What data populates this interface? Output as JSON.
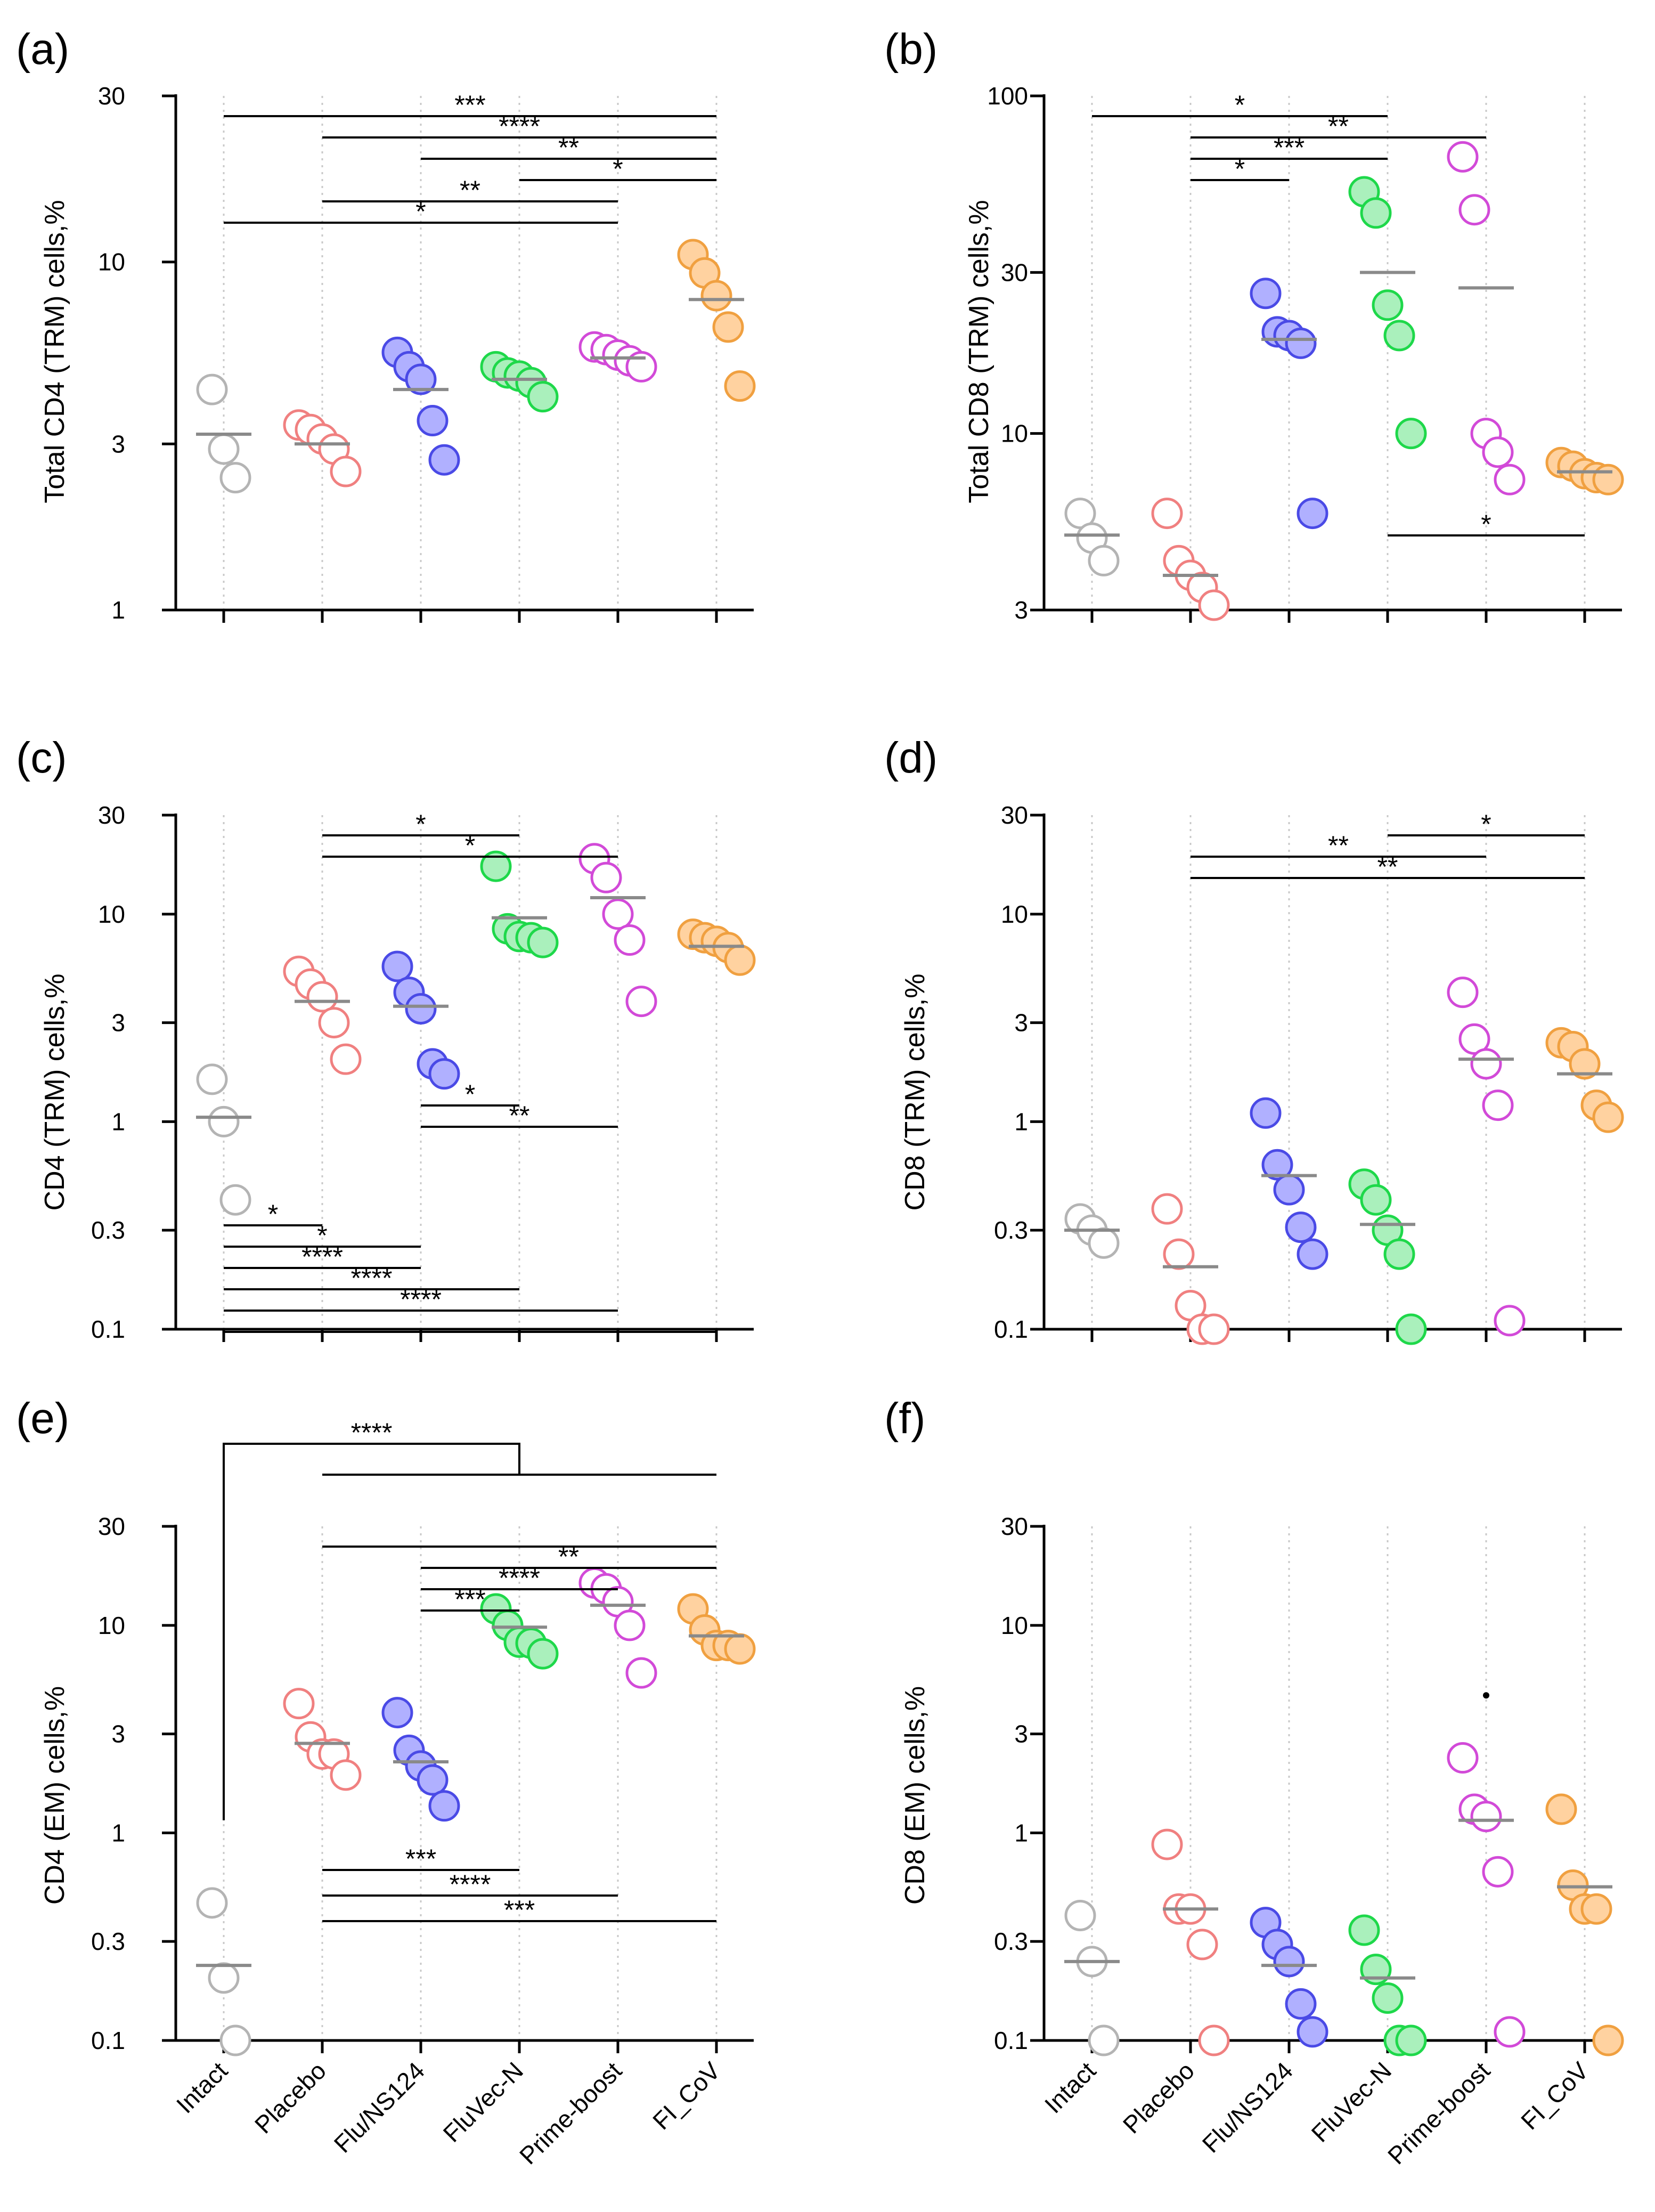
{
  "figure": {
    "groups": [
      "Intact",
      "Placebo",
      "Flu/NS124",
      "FluVec-N",
      "Prime-boost",
      "FI_CoV"
    ],
    "colors": {
      "Intact": "#b4b4b4",
      "Placebo": "#f08080",
      "Flu/NS124": "#4a4ae6",
      "FluVec-N": "#1ed84a",
      "Prime-boost": "#d24ad8",
      "FI_CoV": "#f0a040"
    },
    "fills": {
      "Intact": "#ffffff",
      "Placebo": "#ffffff",
      "Flu/NS124": "#b0b0ff",
      "FluVec-N": "#aaf0bc",
      "Prime-boost": "#ffffff",
      "FI_CoV": "#ffd2a0"
    }
  },
  "chart_data": [
    {
      "panel": "(a)",
      "type": "scatter",
      "scale": "log",
      "ylabel": "Total CD4 (TRM) cells,%",
      "ylim": [
        1,
        30
      ],
      "yticks": [
        1,
        3,
        10,
        30
      ],
      "ytick_labels": [
        "1",
        "3",
        "10",
        "30"
      ],
      "categories": [
        "Intact",
        "Placebo",
        "Flu/NS124",
        "FluVec-N",
        "Prime-boost",
        "FI_CoV"
      ],
      "points": [
        [
          4.3,
          2.9,
          2.4
        ],
        [
          3.4,
          3.3,
          3.1,
          2.9,
          2.5
        ],
        [
          5.5,
          5.0,
          4.6,
          3.5,
          2.7
        ],
        [
          5.0,
          4.8,
          4.7,
          4.5,
          4.1
        ],
        [
          5.7,
          5.6,
          5.4,
          5.2,
          5.0
        ],
        [
          10.5,
          9.3,
          8.0,
          6.5,
          4.4
        ]
      ],
      "medians": [
        3.2,
        3.0,
        4.3,
        4.6,
        5.3,
        7.8
      ],
      "brackets": [
        {
          "from": 0,
          "to": 5,
          "label": "***"
        },
        {
          "from": 1,
          "to": 5,
          "label": "****"
        },
        {
          "from": 2,
          "to": 5,
          "label": "**"
        },
        {
          "from": 3,
          "to": 5,
          "label": "*"
        },
        {
          "from": 1,
          "to": 4,
          "label": "**"
        },
        {
          "from": 0,
          "to": 4,
          "label": "*"
        }
      ]
    },
    {
      "panel": "(b)",
      "type": "scatter",
      "scale": "log",
      "ylabel": "Total CD8 (TRM) cells,%",
      "ylim": [
        3,
        100
      ],
      "yticks": [
        3,
        10,
        30,
        100
      ],
      "ytick_labels": [
        "3",
        "10",
        "30",
        "100"
      ],
      "categories": [
        "Intact",
        "Placebo",
        "Flu/NS124",
        "FluVec-N",
        "Prime-boost",
        "FI_CoV"
      ],
      "points": [
        [
          5.8,
          4.9,
          4.2
        ],
        [
          5.8,
          4.2,
          3.8,
          3.5,
          3.1
        ],
        [
          26,
          20,
          19.5,
          18.5,
          5.8
        ],
        [
          52,
          45,
          24,
          19.5,
          10
        ],
        [
          66,
          46,
          10,
          8.8,
          7.3
        ],
        [
          8.2,
          8.0,
          7.6,
          7.4,
          7.3
        ]
      ],
      "medians": [
        5.0,
        3.8,
        19,
        30,
        27,
        7.7
      ],
      "brackets": [
        {
          "from": 0,
          "to": 3,
          "label": "*"
        },
        {
          "from": 1,
          "to": 4,
          "label": "**"
        },
        {
          "from": 1,
          "to": 3,
          "label": "***"
        },
        {
          "from": 1,
          "to": 2,
          "label": "*"
        }
      ],
      "lower_brackets": [
        {
          "from": 3,
          "to": 5,
          "label": "*"
        }
      ]
    },
    {
      "panel": "(c)",
      "type": "scatter",
      "scale": "log",
      "ylabel": "CD4 (TRM) cells,%",
      "ylim": [
        0.1,
        30
      ],
      "yticks": [
        0.1,
        0.3,
        1,
        3,
        10,
        30
      ],
      "ytick_labels": [
        "0.1",
        "0.3",
        "1",
        "3",
        "10",
        "30"
      ],
      "categories": [
        "Intact",
        "Placebo",
        "Flu/NS124",
        "FluVec-N",
        "Prime-boost",
        "FI_CoV"
      ],
      "points": [
        [
          1.6,
          1.0,
          0.42
        ],
        [
          5.3,
          4.6,
          4.0,
          3.0,
          2.0
        ],
        [
          5.6,
          4.2,
          3.5,
          1.9,
          1.7
        ],
        [
          17,
          8.5,
          7.8,
          7.7,
          7.3
        ],
        [
          18.5,
          15,
          10,
          7.5,
          3.8
        ],
        [
          8.0,
          7.7,
          7.4,
          6.9,
          6.0
        ]
      ],
      "medians": [
        1.05,
        3.8,
        3.6,
        9.6,
        12,
        7.0
      ],
      "brackets": [
        {
          "from": 1,
          "to": 3,
          "label": "*"
        },
        {
          "from": 1,
          "to": 4,
          "label": "*"
        }
      ],
      "lower_brackets": [
        {
          "from": 2,
          "to": 3,
          "label": "*"
        },
        {
          "from": 2,
          "to": 4,
          "label": "**"
        },
        {
          "from": 0,
          "to": 1,
          "label": "*"
        },
        {
          "from": 0,
          "to": 2,
          "label": "*"
        },
        {
          "from": 0,
          "to": 2,
          "label": "****"
        },
        {
          "from": 0,
          "to": 3,
          "label": "****"
        },
        {
          "from": 0,
          "to": 4,
          "label": "****"
        },
        {
          "from": 0,
          "to": 5,
          "label": ""
        }
      ]
    },
    {
      "panel": "(d)",
      "type": "scatter",
      "scale": "log",
      "ylabel": "CD8 (TRM) cells,%",
      "ylim": [
        0.1,
        30
      ],
      "yticks": [
        0.1,
        0.3,
        1,
        3,
        10,
        30
      ],
      "ytick_labels": [
        "0.1",
        "0.3",
        "1",
        "3",
        "10",
        "30"
      ],
      "categories": [
        "Intact",
        "Placebo",
        "Flu/NS124",
        "FluVec-N",
        "Prime-boost",
        "FI_CoV"
      ],
      "points": [
        [
          0.34,
          0.3,
          0.26
        ],
        [
          0.38,
          0.23,
          0.13,
          0.1,
          0.1
        ],
        [
          1.1,
          0.62,
          0.47,
          0.31,
          0.23
        ],
        [
          0.5,
          0.42,
          0.3,
          0.23,
          0.1
        ],
        [
          4.2,
          2.5,
          1.9,
          1.2,
          0.11
        ],
        [
          2.4,
          2.3,
          1.9,
          1.2,
          1.05
        ]
      ],
      "medians": [
        0.3,
        0.2,
        0.55,
        0.32,
        2.0,
        1.7
      ],
      "brackets": [
        {
          "from": 3,
          "to": 5,
          "label": "*"
        },
        {
          "from": 1,
          "to": 4,
          "label": "**"
        },
        {
          "from": 1,
          "to": 5,
          "label": "**"
        }
      ]
    },
    {
      "panel": "(e)",
      "type": "scatter",
      "scale": "log",
      "ylabel": "CD4 (EM) cells,%",
      "ylim": [
        0.1,
        30
      ],
      "yticks": [
        0.1,
        0.3,
        1,
        3,
        10,
        30
      ],
      "ytick_labels": [
        "0.1",
        "0.3",
        "1",
        "3",
        "10",
        "30"
      ],
      "categories": [
        "Intact",
        "Placebo",
        "Flu/NS124",
        "FluVec-N",
        "Prime-boost",
        "FI_CoV"
      ],
      "xtick_labels": [
        "Intact",
        "Placebo",
        "Flu/NS124",
        "FluVec-N",
        "Prime-boost",
        "FI_CoV"
      ],
      "points": [
        [
          0.46,
          0.2,
          0.1
        ],
        [
          4.2,
          2.9,
          2.4,
          2.4,
          1.9
        ],
        [
          3.8,
          2.5,
          2.1,
          1.8,
          1.35
        ],
        [
          12,
          10,
          8.3,
          8.2,
          7.3
        ],
        [
          16,
          15,
          13,
          10,
          5.9
        ],
        [
          12,
          9.5,
          8.0,
          8.0,
          7.7
        ]
      ],
      "medians": [
        0.23,
        2.7,
        2.2,
        9.8,
        12.5,
        8.9
      ],
      "brackets": [
        {
          "from": 1,
          "to": 5,
          "label": ""
        },
        {
          "from": 2,
          "to": 5,
          "label": "**"
        },
        {
          "from": 2,
          "to": 4,
          "label": "****"
        },
        {
          "from": 2,
          "to": 3,
          "label": "***"
        }
      ],
      "joined_bracket": {
        "from": 0,
        "mid_from": 1,
        "mid_to": 5,
        "label": "****"
      },
      "lower_brackets": [
        {
          "from": 1,
          "to": 3,
          "label": "***"
        },
        {
          "from": 1,
          "to": 4,
          "label": "****"
        },
        {
          "from": 1,
          "to": 5,
          "label": "***"
        }
      ]
    },
    {
      "panel": "(f)",
      "type": "scatter",
      "scale": "log",
      "ylabel": "CD8 (EM) cells,%",
      "ylim": [
        0.1,
        30
      ],
      "yticks": [
        0.1,
        0.3,
        1,
        3,
        10,
        30
      ],
      "ytick_labels": [
        "0.1",
        "0.3",
        "1",
        "3",
        "10",
        "30"
      ],
      "categories": [
        "Intact",
        "Placebo",
        "Flu/NS124",
        "FluVec-N",
        "Prime-boost",
        "FI_CoV"
      ],
      "xtick_labels": [
        "Intact",
        "Placebo",
        "Flu/NS124",
        "FluVec-N",
        "Prime-boost",
        "FI_CoV"
      ],
      "points": [
        [
          0.4,
          0.24,
          0.1
        ],
        [
          0.88,
          0.43,
          0.43,
          0.29,
          0.1
        ],
        [
          0.37,
          0.29,
          0.24,
          0.15,
          0.11
        ],
        [
          0.34,
          0.22,
          0.16,
          0.1,
          0.1
        ],
        [
          2.3,
          1.3,
          1.2,
          0.65,
          0.11
        ],
        [
          1.3,
          0.56,
          0.43,
          0.43,
          0.1
        ]
      ],
      "medians": [
        0.24,
        0.43,
        0.23,
        0.2,
        1.15,
        0.55
      ],
      "brackets": [],
      "outlier_dot": {
        "group": 4,
        "value": 4.6
      }
    }
  ]
}
